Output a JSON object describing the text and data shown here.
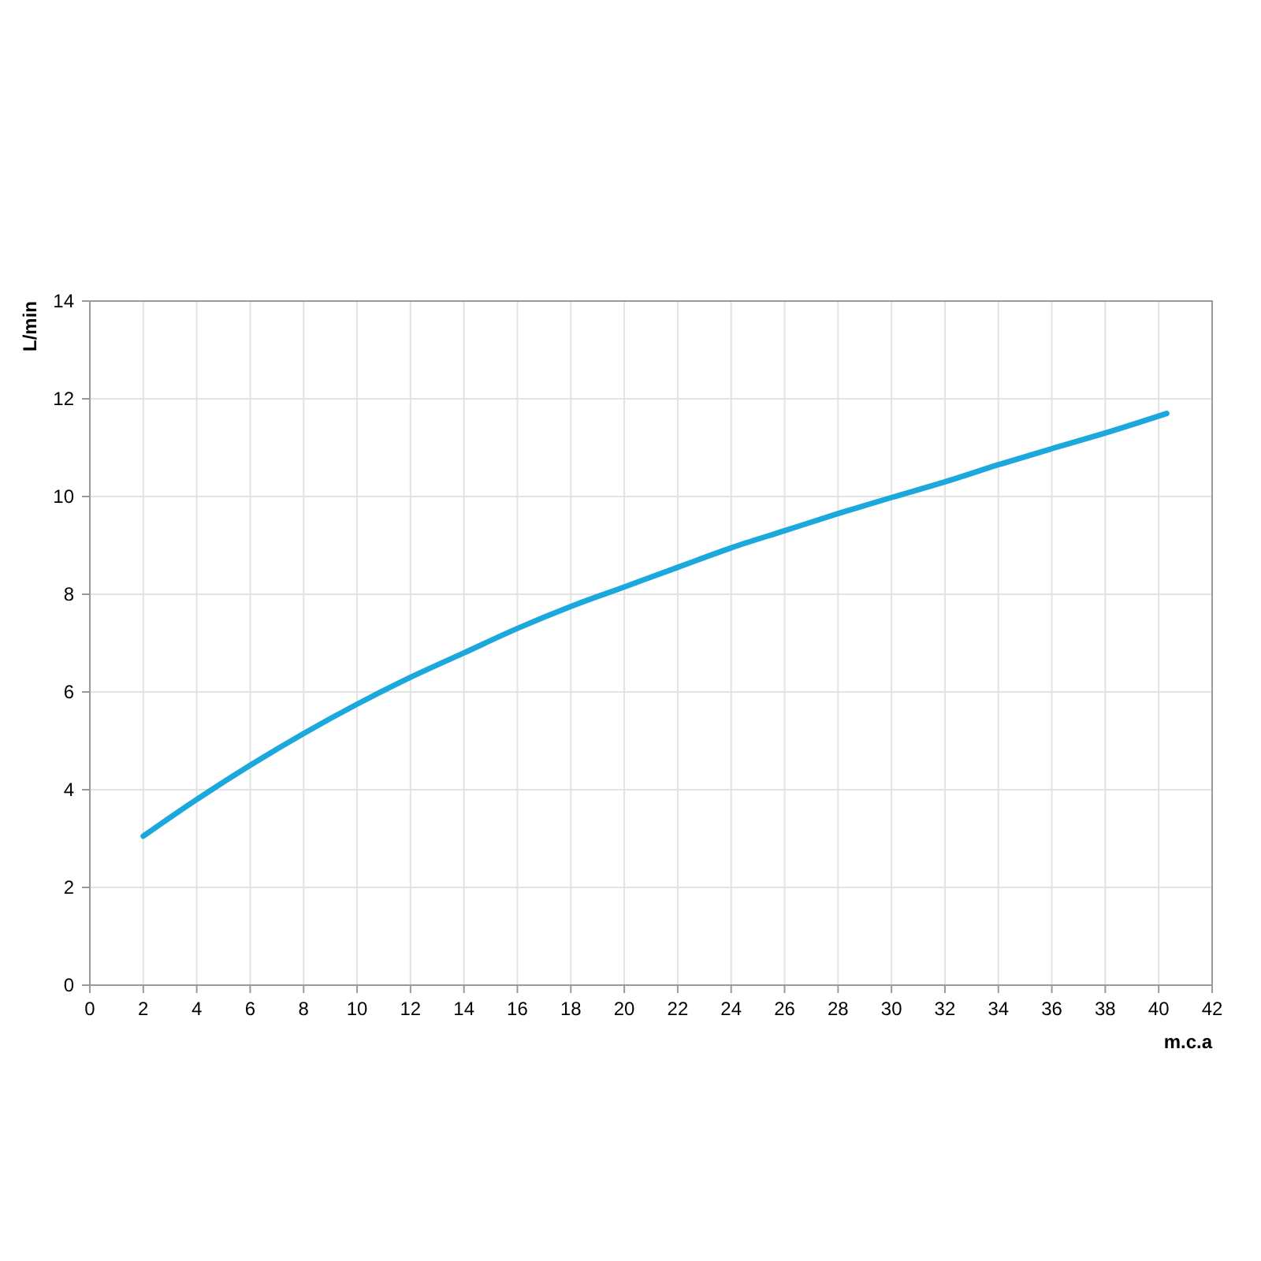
{
  "chart_data": {
    "type": "line",
    "xlabel": "m.c.a",
    "ylabel": "L/min",
    "x": [
      2,
      4,
      6,
      8,
      10,
      12,
      14,
      16,
      18,
      20,
      22,
      24,
      26,
      28,
      30,
      32,
      34,
      36,
      38,
      40.3
    ],
    "series": [
      {
        "color": "#1ba8dc",
        "values": [
          3.05,
          3.8,
          4.5,
          5.15,
          5.75,
          6.3,
          6.8,
          7.3,
          7.75,
          8.15,
          8.55,
          8.95,
          9.3,
          9.65,
          9.98,
          10.3,
          10.65,
          10.98,
          11.3,
          11.7
        ]
      }
    ],
    "xlim": [
      0,
      42
    ],
    "xticks": [
      0,
      2,
      4,
      6,
      8,
      10,
      12,
      14,
      16,
      18,
      20,
      22,
      24,
      26,
      28,
      30,
      32,
      34,
      36,
      38,
      40,
      42
    ],
    "ylim": [
      0,
      14
    ],
    "yticks": [
      0,
      2,
      4,
      6,
      8,
      10,
      12,
      14
    ],
    "grid": true,
    "marker": "none",
    "line_style": "solid"
  }
}
